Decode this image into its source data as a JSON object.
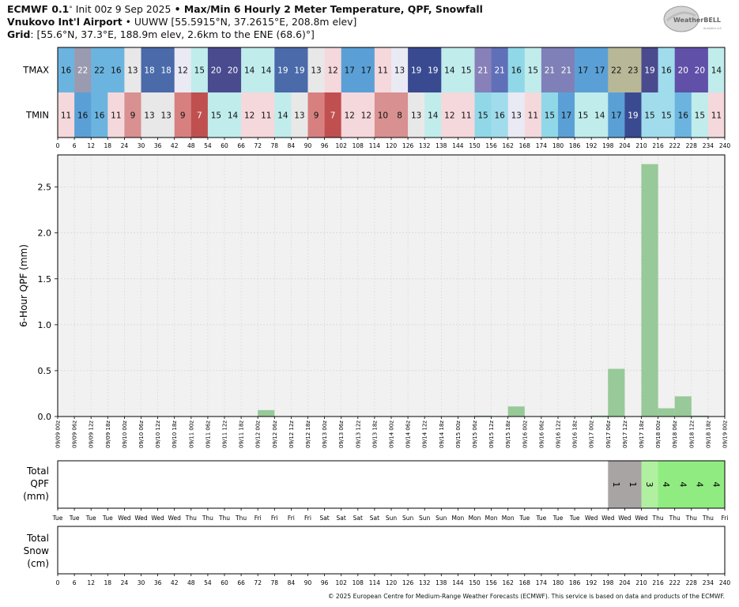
{
  "header": {
    "line1_model": "ECMWF 0.1",
    "line1_deg": "°",
    "line1_init": "Init 00z 9 Sep 2025",
    "line1_bullet": " • ",
    "line1_product": "Max/Min 6 Hourly 2 Meter Temperature,  QPF,  Snowfall",
    "line2_station": "Vnukovo Int'l Airport",
    "line2_bullet": " • ",
    "line2_info": "UUWW [55.5915°N, 37.2615°E, 208.8m elev]",
    "line3_label": "Grid",
    "line3_info": ": [55.6°N, 37.3°E, 188.9m elev, 2.6km to the ENE (68.6)°]"
  },
  "logo": {
    "text_main": "WeatherBELL",
    "text_sub": "Analytics LLC"
  },
  "copyright": "© 2025 European Centre for Medium-Range Weather Forecasts (ECMWF). This service is based on data and products of the ECMWF.",
  "chart_data": [
    {
      "type": "heatmap",
      "rows": [
        "TMAX",
        "TMIN"
      ],
      "x": [
        0,
        6,
        12,
        18,
        24,
        30,
        36,
        42,
        48,
        54,
        60,
        66,
        72,
        78,
        84,
        90,
        96,
        102,
        108,
        114,
        120,
        126,
        132,
        138,
        144,
        150,
        156,
        162,
        168,
        174,
        180,
        186,
        192,
        198,
        204,
        210,
        216,
        222,
        228,
        234,
        240
      ],
      "tmax": [
        16,
        22,
        22,
        16,
        13,
        18,
        18,
        12,
        15,
        20,
        20,
        14,
        14,
        19,
        19,
        13,
        12,
        17,
        17,
        11,
        13,
        19,
        19,
        14,
        15,
        21,
        21,
        16,
        15,
        21,
        21,
        17,
        17,
        22,
        23,
        19,
        16,
        20,
        20,
        14
      ],
      "tmin": [
        11,
        16,
        16,
        11,
        9,
        13,
        13,
        9,
        7,
        15,
        14,
        12,
        11,
        14,
        13,
        9,
        7,
        12,
        12,
        10,
        8,
        13,
        14,
        12,
        11,
        15,
        16,
        13,
        11,
        15,
        17,
        15,
        14,
        17,
        19,
        15,
        15,
        16,
        15,
        11
      ],
      "tmax_colors": [
        "#6cb4e0",
        "#9a9ab0",
        "#6cb4e0",
        "#6cb4e0",
        "#e8e8e8",
        "#4a6aaa",
        "#4a6aaa",
        "#eaeaf4",
        "#c0ecec",
        "#4a4a8e",
        "#4a4a8e",
        "#c0ecec",
        "#c0ecec",
        "#4a6aaa",
        "#4a6aaa",
        "#e8e8e8",
        "#f5d8dc",
        "#5aa0d6",
        "#5aa0d6",
        "#f5d8dc",
        "#eaeaf4",
        "#3a4a90",
        "#3a4a90",
        "#c0ecec",
        "#c0ecec",
        "#8880b8",
        "#6070b8",
        "#90d8e8",
        "#c0ecec",
        "#8080b8",
        "#8080b8",
        "#5aa0d6",
        "#5aa0d6",
        "#b8b898",
        "#b8b898",
        "#4a4a8e",
        "#a0dcec",
        "#6050a8",
        "#6050a8",
        "#c0ecec"
      ],
      "tmin_colors": [
        "#f5d8dc",
        "#5aa0d6",
        "#6cb4e0",
        "#f5d8dc",
        "#d89090",
        "#e8e8e8",
        "#e8e8e8",
        "#d88080",
        "#c05050",
        "#c0ecec",
        "#c0ecec",
        "#f5d8dc",
        "#f5d8dc",
        "#c0ecec",
        "#e8e8e8",
        "#d88080",
        "#c05050",
        "#f5d8dc",
        "#f5d8dc",
        "#d89090",
        "#d89090",
        "#e8e8e8",
        "#c0ecec",
        "#f5d8dc",
        "#f5d8dc",
        "#90d8e8",
        "#a0dcec",
        "#eaeaf4",
        "#f5d8dc",
        "#90d8e8",
        "#5aa0d6",
        "#c0ecec",
        "#c0ecec",
        "#5aa0d6",
        "#3a4a90",
        "#a0dcec",
        "#a0dcec",
        "#6cb4e0",
        "#c0ecec",
        "#f5d8dc"
      ]
    },
    {
      "type": "bar",
      "ylabel": "6-Hour QPF (mm)",
      "ylim": [
        0,
        2.85
      ],
      "yticks": [
        0.0,
        0.5,
        1.0,
        1.5,
        2.0,
        2.5
      ],
      "ytick_labels": [
        "0.0",
        "0.5",
        "1.0",
        "1.5",
        "2.0",
        "2.5"
      ],
      "categories": [
        "09/09 00z",
        "09/09 06z",
        "09/09 12z",
        "09/09 18z",
        "09/10 00z",
        "09/10 06z",
        "09/10 12z",
        "09/10 18z",
        "09/11 00z",
        "09/11 06z",
        "09/11 12z",
        "09/11 18z",
        "09/12 00z",
        "09/12 06z",
        "09/12 12z",
        "09/12 18z",
        "09/13 00z",
        "09/13 06z",
        "09/13 12z",
        "09/13 18z",
        "09/14 00z",
        "09/14 06z",
        "09/14 12z",
        "09/14 18z",
        "09/15 00z",
        "09/15 06z",
        "09/15 12z",
        "09/15 18z",
        "09/16 00z",
        "09/16 06z",
        "09/16 12z",
        "09/16 18z",
        "09/17 00z",
        "09/17 06z",
        "09/17 12z",
        "09/17 18z",
        "09/18 00z",
        "09/18 06z",
        "09/18 12z",
        "09/18 18z",
        "09/19 00z"
      ],
      "values": [
        0,
        0,
        0,
        0,
        0,
        0,
        0,
        0,
        0,
        0,
        0,
        0,
        0,
        0.07,
        0,
        0,
        0,
        0,
        0,
        0,
        0,
        0,
        0,
        0,
        0,
        0,
        0.01,
        0,
        0.11,
        0,
        0,
        0,
        0,
        0.01,
        0.52,
        0,
        2.75,
        0.09,
        0.22,
        0.01,
        0
      ],
      "bar_color": "#98c998",
      "grid": true
    },
    {
      "type": "table",
      "ylabel": "Total\nQPF\n(mm)",
      "days": [
        "Tue",
        "Tue",
        "Tue",
        "Tue",
        "Wed",
        "Wed",
        "Wed",
        "Wed",
        "Thu",
        "Thu",
        "Thu",
        "Thu",
        "Fri",
        "Fri",
        "Fri",
        "Fri",
        "Sat",
        "Sat",
        "Sat",
        "Sat",
        "Sun",
        "Sun",
        "Sun",
        "Sun",
        "Mon",
        "Mon",
        "Mon",
        "Mon",
        "Tue",
        "Tue",
        "Tue",
        "Tue",
        "Wed",
        "Wed",
        "Wed",
        "Wed",
        "Thu",
        "Thu",
        "Thu",
        "Thu",
        "Fri"
      ],
      "totals": [
        0,
        0,
        0,
        0,
        0,
        0,
        0,
        0,
        0,
        0,
        0,
        0,
        0,
        0,
        0,
        0,
        0,
        0,
        0,
        0,
        0,
        0,
        0,
        0,
        0,
        0,
        0,
        0,
        0,
        0,
        0,
        0,
        0,
        0,
        1,
        1,
        3,
        4,
        4,
        4,
        4
      ],
      "cell_colors": {
        "1": "#a8a4a4",
        "3": "#b0f0a0",
        "4": "#90ec80"
      }
    },
    {
      "type": "table",
      "ylabel": "Total\nSnow\n(cm)",
      "x": [
        0,
        6,
        12,
        18,
        24,
        30,
        36,
        42,
        48,
        54,
        60,
        66,
        72,
        78,
        84,
        90,
        96,
        102,
        108,
        114,
        120,
        126,
        132,
        138,
        144,
        150,
        156,
        162,
        168,
        174,
        180,
        186,
        192,
        198,
        204,
        210,
        216,
        222,
        228,
        234,
        240
      ],
      "totals": []
    }
  ]
}
